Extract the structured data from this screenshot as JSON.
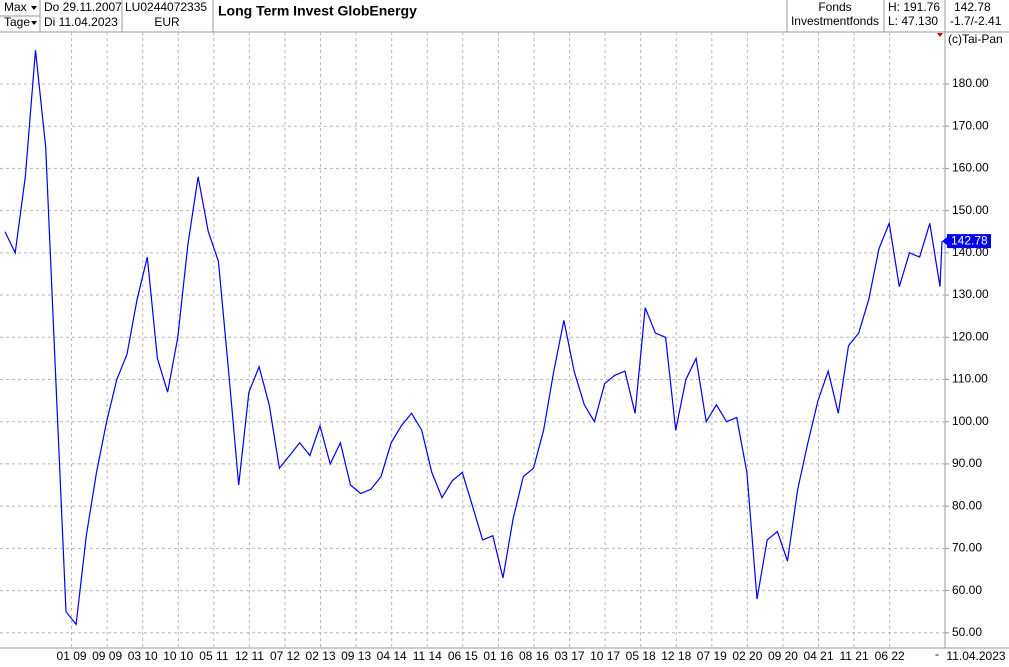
{
  "header": {
    "range": "Max",
    "period": "Tage",
    "date_from": "Do 29.11.2007",
    "date_to": "Di 11.04.2023",
    "isin": "LU0244072335",
    "currency": "EUR",
    "category": "Fonds",
    "subcategory": "Investmentfonds",
    "high": "H: 191.76",
    "low": "L: 47.130",
    "change": "-1.7/-2.41",
    "copyright": "(c)Tai-Pan",
    "end_date": "11.04.2023",
    "end_marker": "-"
  },
  "chart_data": {
    "type": "line",
    "title": "Long Term Invest GlobEnergy",
    "x": [
      0,
      2,
      4,
      6,
      8,
      10,
      12,
      14,
      16,
      18,
      20,
      22,
      24,
      26,
      28,
      30,
      32,
      34,
      36,
      38,
      40,
      42,
      44,
      46,
      48,
      50,
      52,
      54,
      56,
      58,
      60,
      62,
      64,
      66,
      68,
      70,
      72,
      74,
      76,
      78,
      80,
      82,
      84,
      86,
      88,
      90,
      92,
      94,
      96,
      98,
      100,
      102,
      104,
      106,
      108,
      110,
      112,
      114,
      116,
      118,
      120,
      122,
      124,
      126,
      128,
      130,
      132,
      134,
      136,
      138,
      140,
      142,
      144,
      146,
      148,
      150,
      152,
      154,
      156,
      158,
      160,
      162,
      164,
      166,
      168,
      170,
      172,
      174,
      176,
      178,
      180,
      182,
      184,
      184.4
    ],
    "series": [
      {
        "name": "Long Term Invest GlobEnergy",
        "color": "#0000ee",
        "values": [
          145,
          140,
          158,
          188,
          165,
          110,
          55,
          52,
          73,
          88,
          100,
          110,
          116,
          129,
          139,
          115,
          107,
          120,
          142,
          158,
          145,
          138,
          112,
          85,
          107,
          113,
          104,
          89,
          92,
          95,
          92,
          99,
          90,
          95,
          85,
          83,
          84,
          87,
          95,
          99,
          102,
          98,
          88,
          82,
          86,
          88,
          80,
          72,
          73,
          63,
          77,
          87,
          89,
          98,
          112,
          124,
          112,
          104,
          100,
          109,
          111,
          112,
          102,
          127,
          121,
          120,
          98,
          110,
          115,
          100,
          104,
          100,
          101,
          88,
          58,
          72,
          74,
          67,
          84,
          95,
          105,
          112,
          102,
          118,
          121,
          129,
          141,
          147,
          132,
          140,
          139,
          147,
          132,
          142.78
        ]
      }
    ],
    "xlim": [
      0,
      184.4
    ],
    "xticks": [
      {
        "value": 13.1,
        "label": "01 09"
      },
      {
        "value": 20.1,
        "label": "09 09"
      },
      {
        "value": 27.1,
        "label": "03 10"
      },
      {
        "value": 34.1,
        "label": "10 10"
      },
      {
        "value": 41.1,
        "label": "05 11"
      },
      {
        "value": 48.1,
        "label": "12 11"
      },
      {
        "value": 55.1,
        "label": "07 12"
      },
      {
        "value": 62.1,
        "label": "02 13"
      },
      {
        "value": 69.1,
        "label": "09 13"
      },
      {
        "value": 76.1,
        "label": "04 14"
      },
      {
        "value": 83.1,
        "label": "11 14"
      },
      {
        "value": 90.1,
        "label": "06 15"
      },
      {
        "value": 97.1,
        "label": "01 16"
      },
      {
        "value": 104.1,
        "label": "08 16"
      },
      {
        "value": 111.1,
        "label": "03 17"
      },
      {
        "value": 118.1,
        "label": "10 17"
      },
      {
        "value": 125.1,
        "label": "05 18"
      },
      {
        "value": 132.1,
        "label": "12 18"
      },
      {
        "value": 139.1,
        "label": "07 19"
      },
      {
        "value": 146.1,
        "label": "02 20"
      },
      {
        "value": 153.1,
        "label": "09 20"
      },
      {
        "value": 160.1,
        "label": "04 21"
      },
      {
        "value": 167.1,
        "label": "11 21"
      },
      {
        "value": 174.1,
        "label": "06 22"
      }
    ],
    "ylim": [
      46.4,
      191.6
    ],
    "yticks": [
      {
        "value": 50,
        "label": "50.00"
      },
      {
        "value": 60,
        "label": "60.00"
      },
      {
        "value": 70,
        "label": "70.00"
      },
      {
        "value": 80,
        "label": "80.00"
      },
      {
        "value": 90,
        "label": "90.00"
      },
      {
        "value": 100,
        "label": "100.00"
      },
      {
        "value": 110,
        "label": "110.00"
      },
      {
        "value": 120,
        "label": "120.00"
      },
      {
        "value": 130,
        "label": "130.00"
      },
      {
        "value": 140,
        "label": "140.00"
      },
      {
        "value": 150,
        "label": "150.00"
      },
      {
        "value": 160,
        "label": "160.00"
      },
      {
        "value": 170,
        "label": "170.00"
      },
      {
        "value": 180,
        "label": "180.00"
      }
    ],
    "grid": true
  }
}
